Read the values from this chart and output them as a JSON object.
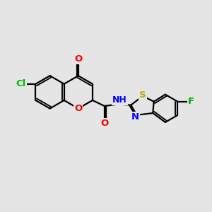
{
  "background_color": "#e5e5e5",
  "bond_color": "#000000",
  "bond_width": 1.6,
  "atom_colors": {
    "O": "#ff0000",
    "N": "#0000ff",
    "S": "#bbaa00",
    "Cl": "#00bb00",
    "F": "#00aa00"
  },
  "font_size": 9.5,
  "fig_width": 3.0,
  "fig_height": 3.0,
  "dpi": 100,
  "xlim": [
    -3.3,
    3.3
  ],
  "ylim": [
    -2.2,
    2.2
  ]
}
